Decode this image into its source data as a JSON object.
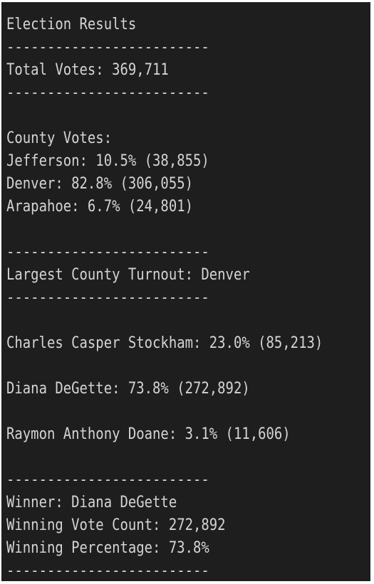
{
  "output": {
    "lines": [
      "Election Results",
      "-------------------------",
      "Total Votes: 369,711",
      "-------------------------",
      "",
      "County Votes:",
      "Jefferson: 10.5% (38,855)",
      "Denver: 82.8% (306,055)",
      "Arapahoe: 6.7% (24,801)",
      "",
      "-------------------------",
      "Largest County Turnout: Denver",
      "-------------------------",
      "",
      "Charles Casper Stockham: 23.0% (85,213)",
      "",
      "Diana DeGette: 73.8% (272,892)",
      "",
      "Raymon Anthony Doane: 3.1% (11,606)",
      "",
      "-------------------------",
      "Winner: Diana DeGette",
      "Winning Vote Count: 272,892",
      "Winning Percentage: 73.8%",
      "-------------------------"
    ]
  },
  "colors": {
    "background": "#1e1e1e",
    "text": "#d4d4d4"
  }
}
